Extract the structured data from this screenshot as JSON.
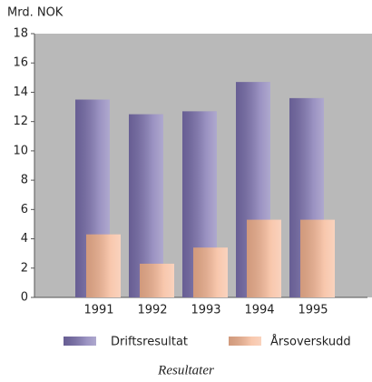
{
  "chart_data": {
    "type": "bar",
    "y_label": "Mrd. NOK",
    "caption": "Resultater",
    "categories": [
      "1991",
      "1992",
      "1993",
      "1994",
      "1995"
    ],
    "series": [
      {
        "name": "Driftsresultat",
        "color": "#7a6fae",
        "values": [
          13.5,
          12.5,
          12.7,
          14.7,
          13.6
        ]
      },
      {
        "name": "Årsoverskudd",
        "color": "#f6b592",
        "values": [
          4.3,
          2.3,
          3.4,
          5.3,
          5.3
        ]
      }
    ],
    "ylim": [
      0,
      18
    ],
    "yticks": [
      0,
      2,
      4,
      6,
      8,
      10,
      12,
      14,
      16,
      18
    ]
  }
}
